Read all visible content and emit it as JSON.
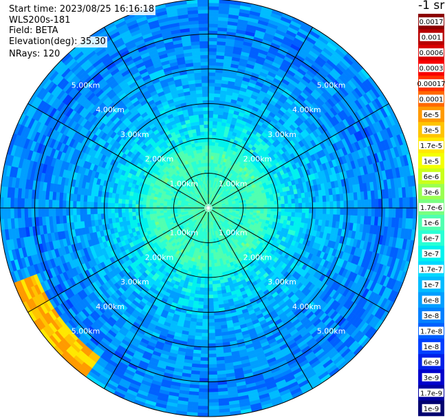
{
  "info": {
    "start_time": "Start time: 2023/08/25 16:16:18",
    "device": "WLS200s-181",
    "field": "Field: BETA",
    "elevation": "Elevation(deg): 35.30",
    "nrays": "NRays: 120"
  },
  "colorbar": {
    "unit_title": "-1 sr",
    "levels": [
      {
        "label": "0.0017",
        "color": "#8b0000"
      },
      {
        "label": "0.001",
        "color": "#b80000"
      },
      {
        "label": "0.0006",
        "color": "#d80000"
      },
      {
        "label": "0.0003",
        "color": "#f80000"
      },
      {
        "label": "0.00017",
        "color": "#ff3000"
      },
      {
        "label": "0.0001",
        "color": "#ff6800"
      },
      {
        "label": "6e-5",
        "color": "#ff9a00"
      },
      {
        "label": "3e-5",
        "color": "#ffc400"
      },
      {
        "label": "1.7e-5",
        "color": "#ffe800"
      },
      {
        "label": "1e-5",
        "color": "#f4ff00"
      },
      {
        "label": "6e-6",
        "color": "#caff1a"
      },
      {
        "label": "3e-6",
        "color": "#9aff50"
      },
      {
        "label": "1.7e-6",
        "color": "#78ff80"
      },
      {
        "label": "1e-6",
        "color": "#50ffb0"
      },
      {
        "label": "6e-7",
        "color": "#28ffd4"
      },
      {
        "label": "3e-7",
        "color": "#00f2ee"
      },
      {
        "label": "1.7e-7",
        "color": "#00d8ff"
      },
      {
        "label": "1e-7",
        "color": "#00bcff"
      },
      {
        "label": "6e-8",
        "color": "#009eff"
      },
      {
        "label": "3e-8",
        "color": "#0080ff"
      },
      {
        "label": "1.7e-8",
        "color": "#0060ff"
      },
      {
        "label": "1e-8",
        "color": "#0040ff"
      },
      {
        "label": "6e-9",
        "color": "#0020e8"
      },
      {
        "label": "3e-9",
        "color": "#0000cc"
      },
      {
        "label": "1.7e-9",
        "color": "#0000a0"
      },
      {
        "label": "1e-9",
        "color": "#000070"
      }
    ]
  },
  "chart_data": {
    "type": "heatmap",
    "title": "",
    "field": "BETA",
    "elevation_deg": 35.3,
    "nrays": 120,
    "range_rings_km": [
      1,
      2,
      3,
      4,
      5
    ],
    "ring_labels": [
      "1.00km",
      "2.00km",
      "3.00km",
      "4.00km",
      "5.00km"
    ],
    "max_range_km": 6.0,
    "spoke_angles_deg": [
      0,
      30,
      60,
      90,
      120,
      150,
      180,
      210,
      240,
      270,
      300,
      330
    ],
    "radial_profile": [
      {
        "range_km": 0.3,
        "beta": "1e-6"
      },
      {
        "range_km": 1.0,
        "beta": "6e-7"
      },
      {
        "range_km": 1.5,
        "beta": "1e-6"
      },
      {
        "range_km": 2.0,
        "beta": "3e-7"
      },
      {
        "range_km": 3.0,
        "beta": "1e-7"
      },
      {
        "range_km": 4.0,
        "beta": "6e-8"
      },
      {
        "range_km": 5.0,
        "beta": "3e-8"
      },
      {
        "range_km": 6.0,
        "beta": "6e-8"
      }
    ],
    "hotspot_sector_deg": [
      215,
      250
    ],
    "hotspot_range_km": [
      5.3,
      6.0
    ],
    "hotspot_beta": "3e-5"
  }
}
